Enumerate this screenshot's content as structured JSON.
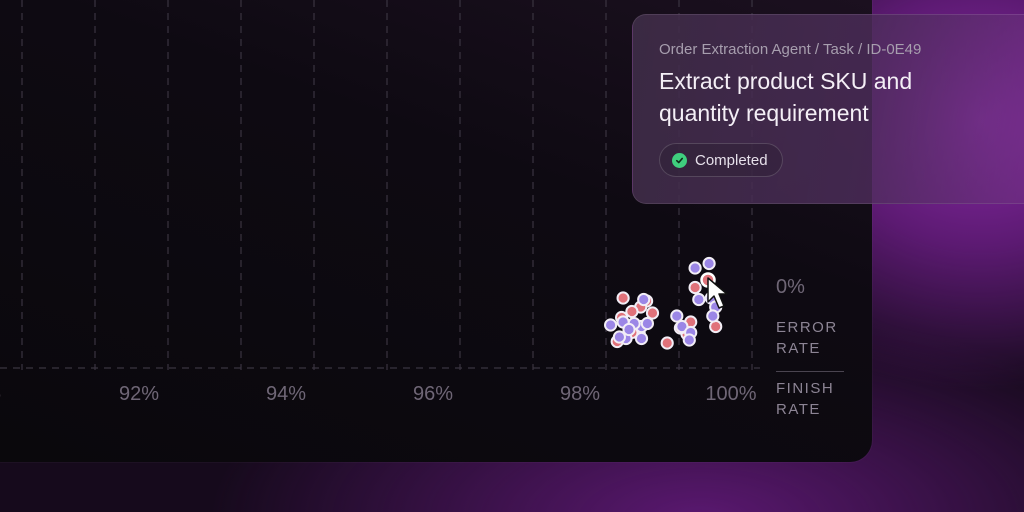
{
  "card": {
    "breadcrumb": "Order Extraction Agent / Task / ID-0E49",
    "title": "Extract product SKU and quantity requirement",
    "status": "Completed"
  },
  "axis": {
    "y_tick": "0%",
    "y_label_line1": "ERROR",
    "y_label_line2": "RATE",
    "x_label_line1": "FINISH",
    "x_label_line2": "RATE"
  },
  "colors": {
    "red_point": "#e0727a",
    "purple_point": "#9b86e6",
    "status_check": "#3fce7e"
  },
  "chart_data": {
    "type": "scatter",
    "xlabel": "FINISH RATE",
    "ylabel": "ERROR RATE",
    "x_ticks": [
      "%",
      "92%",
      "94%",
      "96%",
      "98%",
      "100%"
    ],
    "y_ticks": [
      "0%"
    ],
    "grid": true,
    "series": [
      {
        "color": "red",
        "points": [
          [
            98.6,
            3.2
          ],
          [
            98.92,
            3.0
          ],
          [
            98.84,
            2.6
          ],
          [
            99.0,
            2.2
          ],
          [
            98.72,
            2.3
          ],
          [
            98.58,
            1.9
          ],
          [
            98.82,
            0.8
          ],
          [
            98.52,
            0.3
          ],
          [
            98.72,
            0.9
          ],
          [
            99.58,
            3.9
          ],
          [
            99.47,
            0.8
          ],
          [
            99.86,
            1.3
          ],
          [
            99.2,
            0.2
          ],
          [
            99.38,
            1.2
          ],
          [
            99.52,
            1.6
          ]
        ]
      },
      {
        "color": "purple",
        "points": [
          [
            98.88,
            3.1
          ],
          [
            98.85,
            1.3
          ],
          [
            98.75,
            1.5
          ],
          [
            98.93,
            1.5
          ],
          [
            98.6,
            1.6
          ],
          [
            98.64,
            0.5
          ],
          [
            98.85,
            0.5
          ],
          [
            98.68,
            1.1
          ],
          [
            98.43,
            1.4
          ],
          [
            98.55,
            0.6
          ],
          [
            99.77,
            5.5
          ],
          [
            99.58,
            5.2
          ],
          [
            99.8,
            3.2
          ],
          [
            99.86,
            2.6
          ],
          [
            99.33,
            2.0
          ],
          [
            99.4,
            1.3
          ],
          [
            99.52,
            0.9
          ],
          [
            99.5,
            0.4
          ],
          [
            99.63,
            3.1
          ],
          [
            99.82,
            2.0
          ]
        ]
      }
    ]
  }
}
